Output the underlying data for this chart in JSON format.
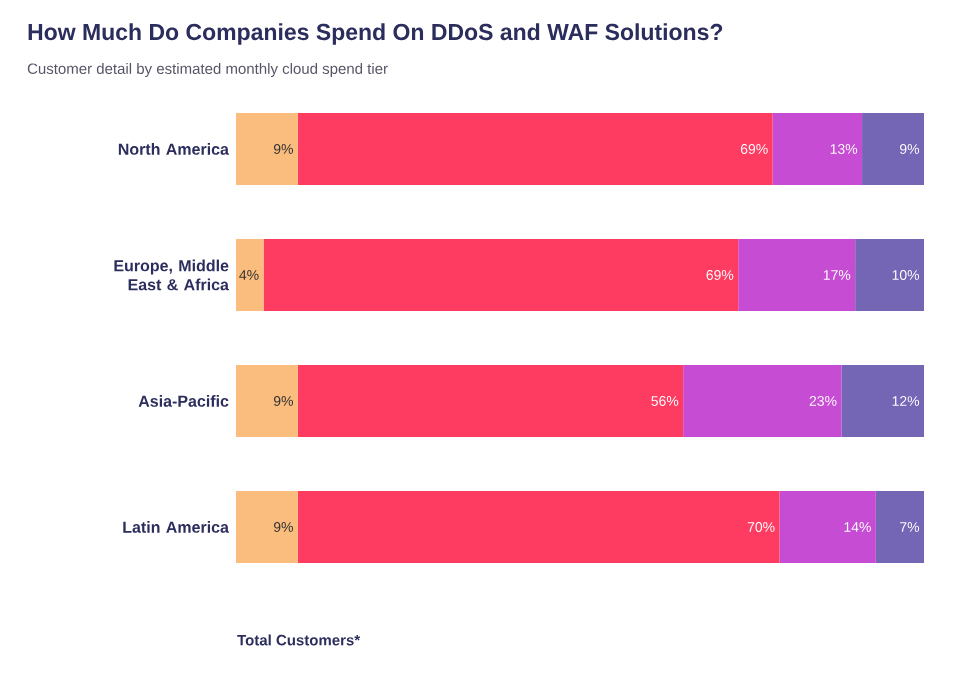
{
  "chart_data": {
    "type": "bar",
    "orientation": "horizontal",
    "stacked": true,
    "title": "How Much Do Companies Spend On DDoS and WAF Solutions?",
    "subtitle": "Customer detail by estimated monthly cloud spend tier",
    "xlabel": "Total Customers*",
    "categories": [
      "North America",
      "Europe, Middle East & Africa",
      "Asia-Pacific",
      "Latin America"
    ],
    "series": [
      {
        "color": "#fbbd7d",
        "values": [
          9,
          4,
          9,
          9
        ],
        "value_labels": [
          "9%",
          "4%",
          "9%",
          "9%"
        ]
      },
      {
        "color": "#fe3c62",
        "values": [
          69,
          69,
          56,
          70
        ],
        "value_labels": [
          "69%",
          "69%",
          "56%",
          "70%"
        ]
      },
      {
        "color": "#c54cd3",
        "values": [
          13,
          17,
          23,
          14
        ],
        "value_labels": [
          "13%",
          "17%",
          "23%",
          "14%"
        ]
      },
      {
        "color": "#7565b5",
        "values": [
          9,
          10,
          12,
          7
        ],
        "value_labels": [
          "9%",
          "10%",
          "12%",
          "7%"
        ]
      }
    ],
    "xlim": [
      0,
      100
    ],
    "tick_labels": "y"
  }
}
